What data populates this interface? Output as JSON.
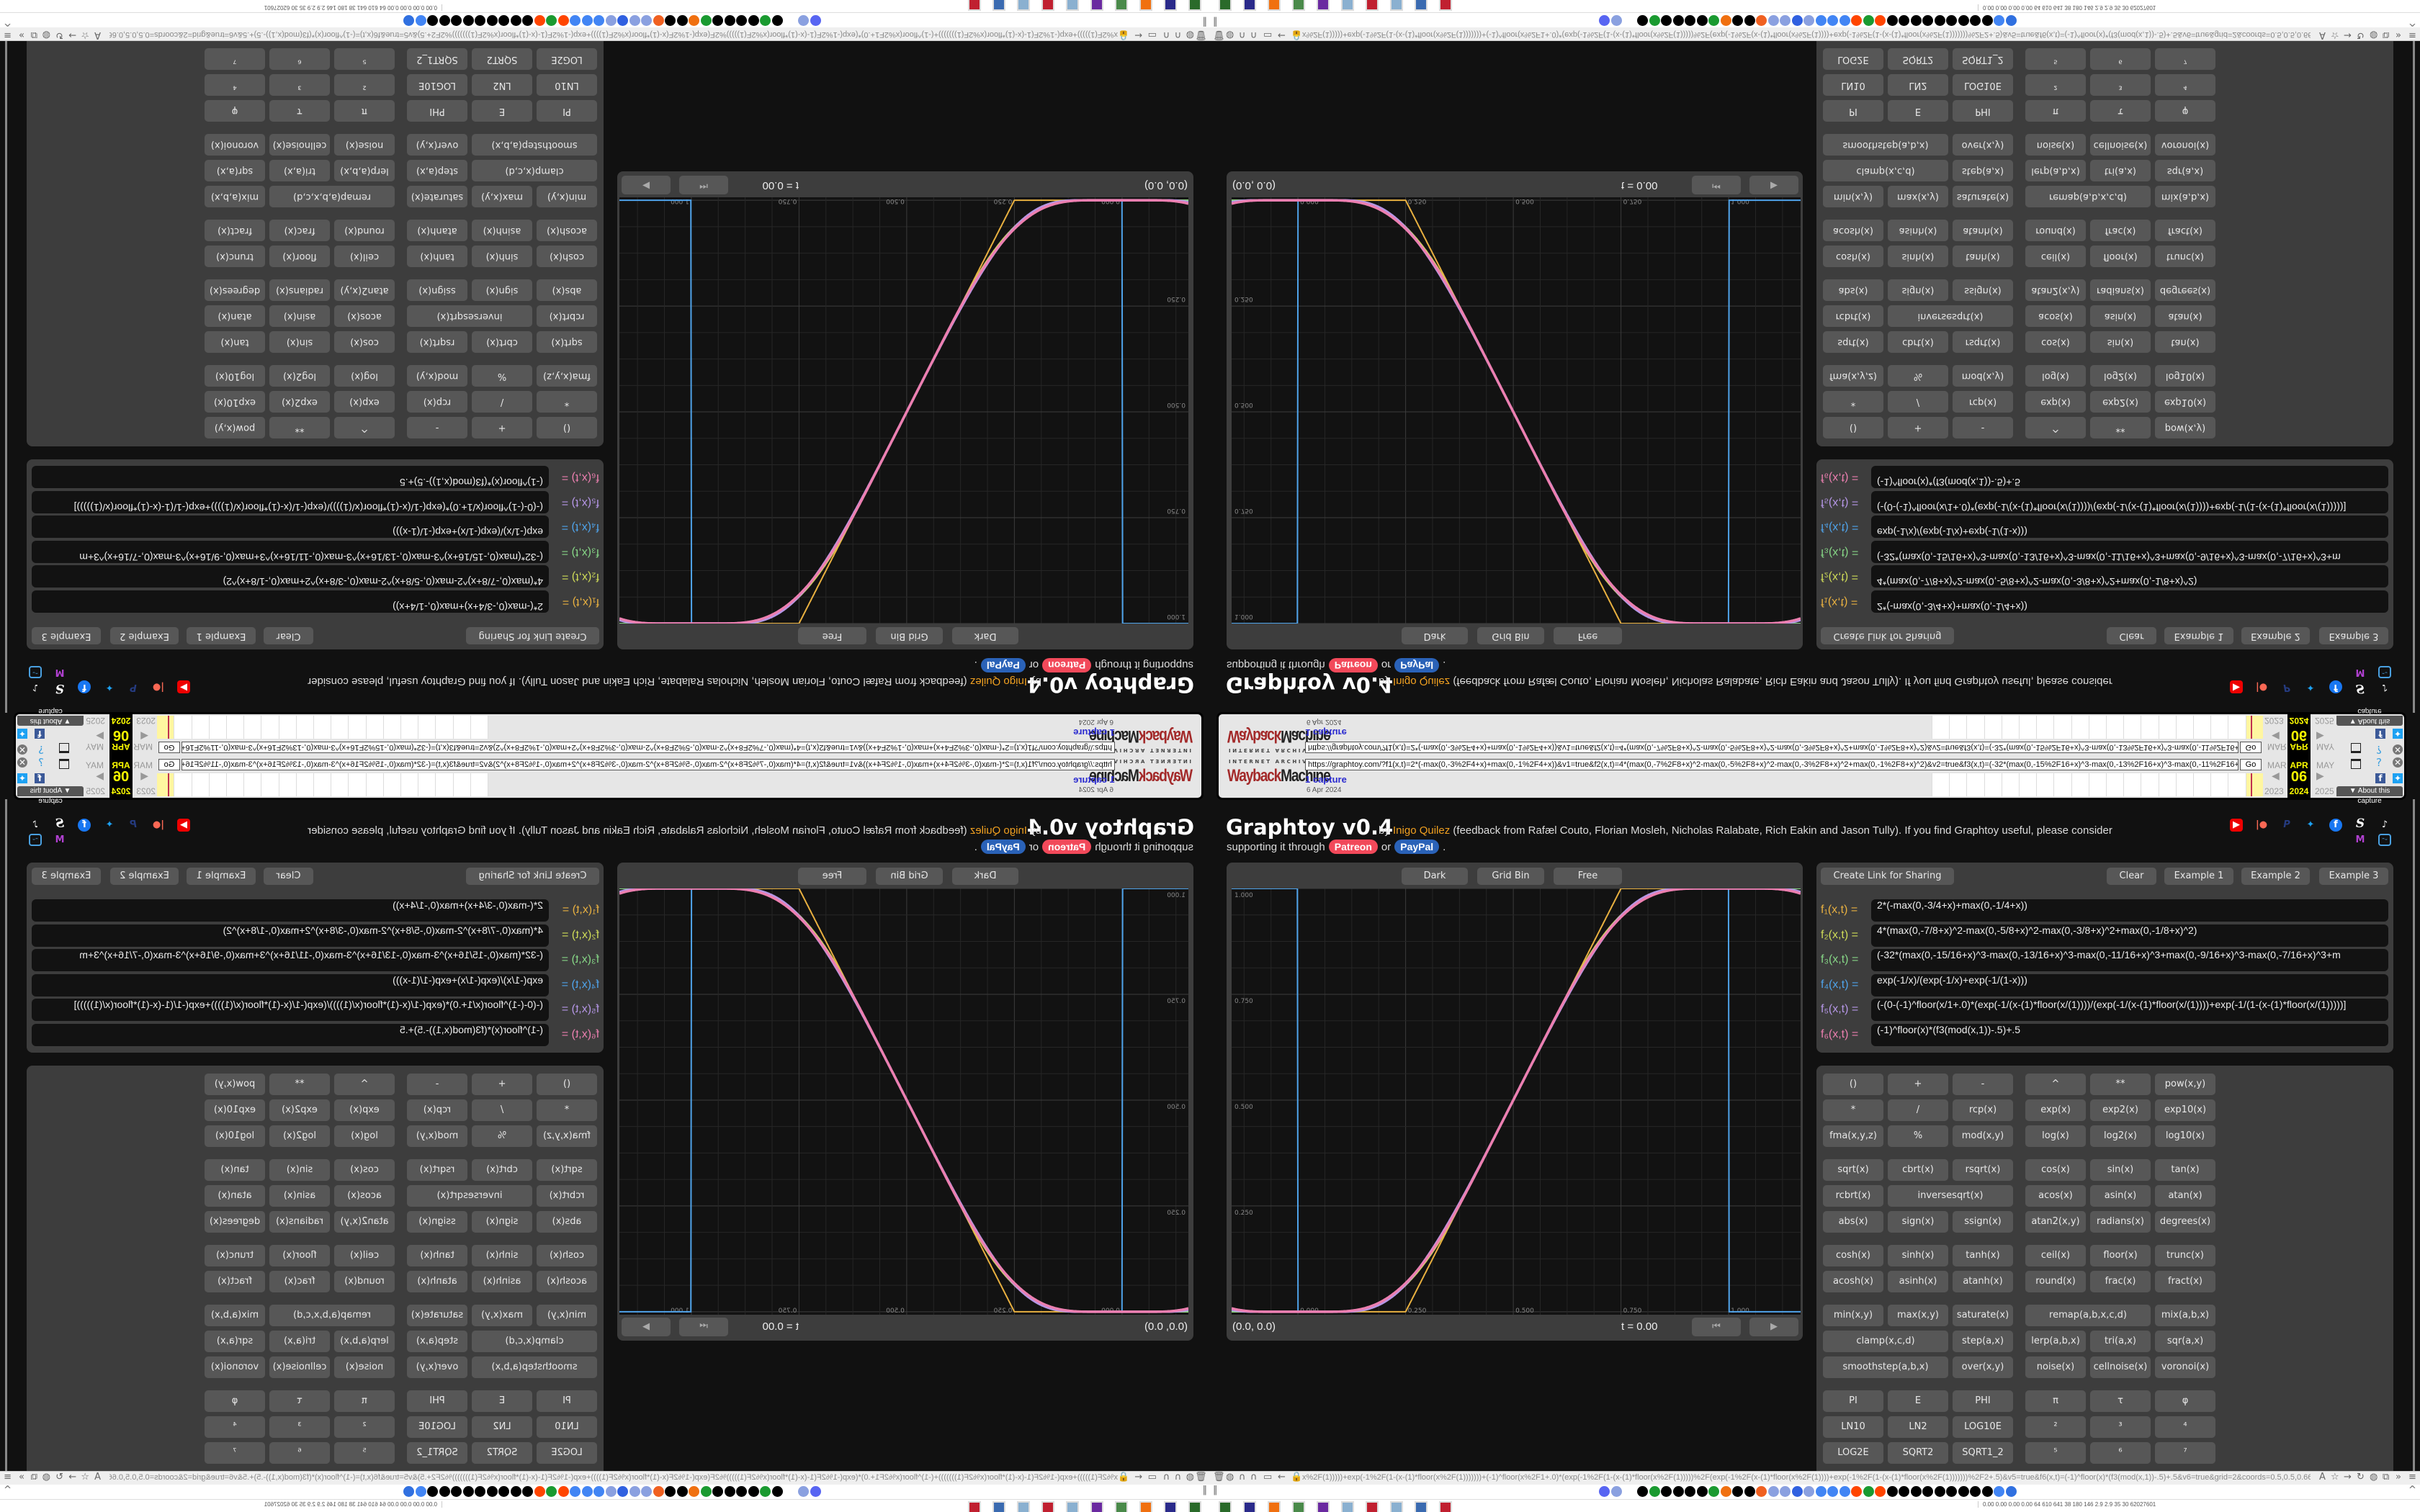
{
  "wayback": {
    "logo_top": "INTERNET ARCHIVE",
    "logo_wayback": "Wayback",
    "logo_machine": "Machine",
    "url": "https://graphtoy.com/?f1(x,t)=2*(-max(0,-3%2F4+x)+max(0,-1%2F4+x))&v1=true&f2(x,t)=4*(max(0,-7%2F8+x)^2-max(0,-5%2F8+x)^2-max(0,-3%2F8+x)^2+max(0,-1%2F8+x)^2)&v2=true&f3(x,t)=(-32*(max(0,-15%2F16+x)^3-max(0,-13%2F16+x)^3-max(0,-11%2F16+x)",
    "go": "Go",
    "captures": "1 capture",
    "date": "6 Apr 2024",
    "prev_month": "MAR",
    "cur_month": "APR",
    "next_month": "MAY",
    "cur_day": "06",
    "prev_year": "2023",
    "cur_year": "2024",
    "next_year": "2025",
    "about": "▼ About this capture"
  },
  "header": {
    "title": "Graphtoy v0.4",
    "by": "by ",
    "author": "Inigo Quilez",
    "credits": " (feedback from Rafæl Couto, Florian Mosleh, Nicholas Ralabate, Rich Eakin and Jason Tully). If you find Graphtoy useful, please consider",
    "support_prefix": "supporting it through",
    "patreon": "Patreon",
    "or": "or",
    "paypal": "PayPal",
    "period": "."
  },
  "social_icons": [
    "youtube-icon",
    "patreon-icon",
    "paypal-icon",
    "twitter-icon",
    "facebook-icon",
    "shadertoy-icon",
    "tiktok-icon",
    "mastodon-icon",
    "bilibili-icon"
  ],
  "graph": {
    "modes": [
      "Dark",
      "Grid Bin",
      "Free"
    ],
    "y_ticks": [
      "1.000",
      "0.750",
      "0.500",
      "0.250"
    ],
    "x_ticks": [
      "0.000",
      "0.250",
      "0.500",
      "0.750",
      "1.000"
    ],
    "coords": "(0.0, 0.0)",
    "time": "t = 0.00",
    "x_range": [
      -0.154,
      1.167
    ],
    "y_range": [
      -0.007,
      1.0
    ]
  },
  "formulas": {
    "create_link": "Create Link for Sharing",
    "clear": "Clear",
    "examples": [
      "Example 1",
      "Example 2",
      "Example 3"
    ],
    "rows": [
      {
        "label": "f₁(x,t) =",
        "value": "2*(-max(0,-3/4+x)+max(0,-1/4+x))",
        "color": "#e8b040"
      },
      {
        "label": "f₂(x,t) =",
        "value": "4*(max(0,-7/8+x)^2-max(0,-5/8+x)^2-max(0,-3/8+x)^2+max(0,-1/8+x)^2)",
        "color": "#cfdc58"
      },
      {
        "label": "f₃(x,t) =",
        "value": "(-32*(max(0,-15/16+x)^3-max(0,-13/16+x)^3-max(0,-11/16+x)^3+max(0,-9/16+x)^3-max(0,-7/16+x)^3+m",
        "color": "#86d686"
      },
      {
        "label": "f₄(x,t) =",
        "value": "exp(-1/x)/(exp(-1/x)+exp(-1/(1-x)))",
        "color": "#4fa3ea"
      },
      {
        "label": "f₅(x,t) =",
        "value": "(-(0-(-1)^floor(x/1+.0)*(exp(-1/(x-(1)*floor(x/(1))))/(exp(-1/(x-(1)*floor(x/(1))))+exp(-1/(1-(x-(1)*floor(x/(1)))))]",
        "color": "#b596e6"
      },
      {
        "label": "f₆(x,t) =",
        "value": "(-1)^floor(x)*(f3(mod(x,1))-.5)+.5",
        "color": "#ec7fb0"
      }
    ]
  },
  "keypad": [
    [
      [
        "()",
        "+",
        "-",
        "^",
        "**",
        "pow(x,y)"
      ],
      [
        "*",
        "/",
        "rcp(x)",
        "exp(x)",
        "exp2(x)",
        "exp10(x)"
      ],
      [
        "fma(x,y,z)",
        "%",
        "mod(x,y)",
        "log(x)",
        "log2(x)",
        "log10(x)"
      ]
    ],
    [
      [
        "sqrt(x)",
        "cbrt(x)",
        "rsqrt(x)",
        "cos(x)",
        "sin(x)",
        "tan(x)"
      ],
      [
        "rcbrt(x)",
        "inversesqrt(x)",
        "acos(x)",
        "asin(x)",
        "atan(x)"
      ],
      [
        "abs(x)",
        "sign(x)",
        "ssign(x)",
        "atan2(x,y)",
        "radians(x)",
        "degrees(x)"
      ]
    ],
    [
      [
        "cosh(x)",
        "sinh(x)",
        "tanh(x)",
        "ceil(x)",
        "floor(x)",
        "trunc(x)"
      ],
      [
        "acosh(x)",
        "asinh(x)",
        "atanh(x)",
        "round(x)",
        "frac(x)",
        "fract(x)"
      ]
    ],
    [
      [
        "min(x,y)",
        "max(x,y)",
        "saturate(x)",
        "remap(a,b,x,c,d)",
        "mix(a,b,x)"
      ],
      [
        "clamp(x,c,d)",
        "step(a,x)",
        "lerp(a,b,x)",
        "tri(a,x)",
        "sqr(a,x)"
      ],
      [
        "smoothstep(a,b,x)",
        "over(x,y)",
        "noise(x)",
        "cellnoise(x)",
        "voronoi(x)"
      ]
    ],
    [
      [
        "PI",
        "E",
        "PHI",
        "π",
        "τ",
        "φ"
      ],
      [
        "LN10",
        "LN2",
        "LOG10E",
        "²",
        "³",
        "⁴"
      ],
      [
        "LOG2E",
        "SQRT2",
        "SQRT1_2",
        "⁵",
        "⁶",
        "⁷"
      ]
    ]
  ],
  "browser": {
    "url": "x%2F(1)))))+exp(-1%2F(1-(x-(1)*floor(x%2F(1)))))))+(-1)^floor(x%2F1+.0)*(exp(-1%2F(1-(x-(1)*floor(x%2F(1)))))%2F(exp(-1%2F(x-(1)*floor(x%2F(1))))+exp(-1%2F(1-(x-(1)*floor(x%2F(1)))))))%2F2+.5)&v5=true&f6(x,t)=(-1)^floor(x)*(f3(mod(x,1))-.5)+.5&v6=true&grid=2&coords=0.5,0.5,0.6669354838709677",
    "status": "0.00 0.00 0.00 0.00   64   610   641   38   180   146   2.9   2.9   35   30   62027601"
  },
  "colors": {
    "accent_author": "#f0a020",
    "patreon": "#f2495a",
    "paypal": "#2a62b8",
    "panel": "#3d3d3d",
    "button": "#575757"
  }
}
